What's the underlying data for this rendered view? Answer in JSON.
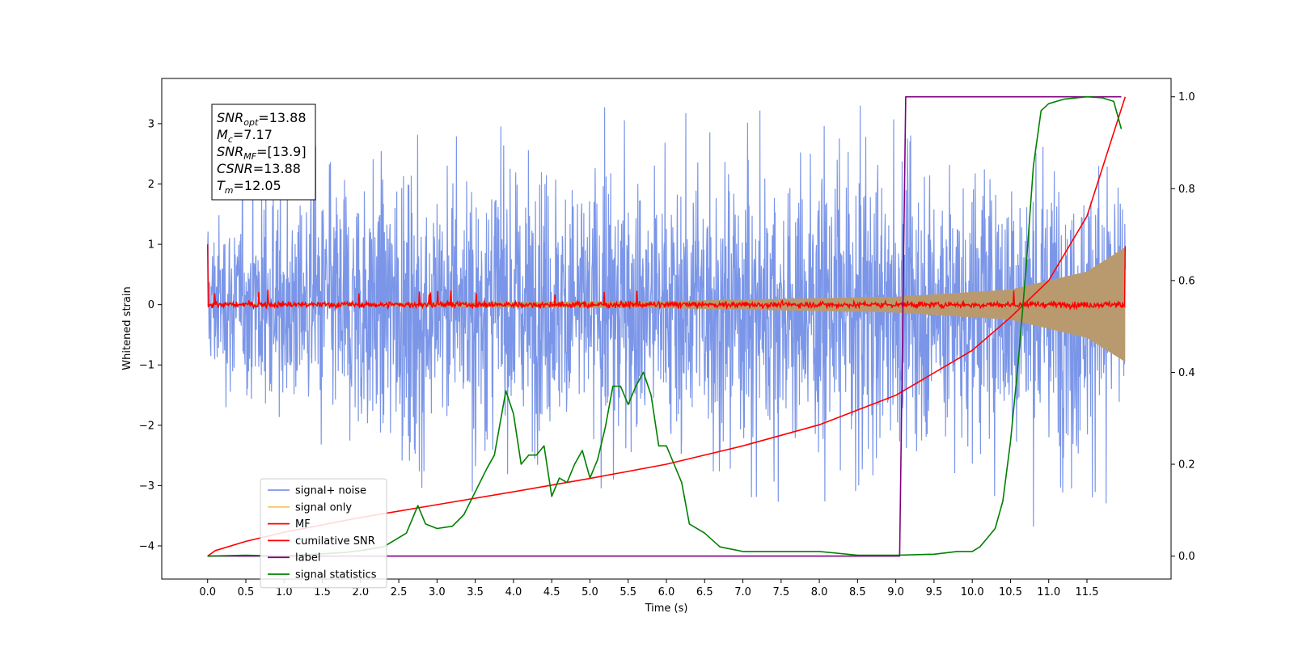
{
  "chart_data": {
    "type": "line",
    "xlabel": "Time (s)",
    "ylabel": "Whitened strain",
    "ylabel_right": "",
    "xlim": [
      -0.6,
      12.6
    ],
    "ylim": [
      -4.55,
      3.75
    ],
    "ylim_right": [
      -0.05,
      1.04
    ],
    "x_ticks": [
      0.0,
      0.5,
      1.0,
      1.5,
      2.0,
      2.5,
      3.0,
      3.5,
      4.0,
      4.5,
      5.0,
      5.5,
      6.0,
      6.5,
      7.0,
      7.5,
      8.0,
      8.5,
      9.0,
      9.5,
      10.0,
      10.5,
      11.0,
      11.5
    ],
    "x_tick_labels": [
      "0.0",
      "0.5",
      "1.0",
      "1.5",
      "2.0",
      "2.5",
      "3.0",
      "3.5",
      "4.0",
      "4.5",
      "5.0",
      "5.5",
      "6.0",
      "6.5",
      "7.0",
      "7.5",
      "8.0",
      "8.5",
      "9.0",
      "9.5",
      "10.0",
      "10.5",
      "11.0",
      "11.5"
    ],
    "y_ticks": [
      -4,
      -3,
      -2,
      -1,
      0,
      1,
      2,
      3
    ],
    "y_tick_labels": [
      "−4",
      "−3",
      "−2",
      "−1",
      "0",
      "1",
      "2",
      "3"
    ],
    "y_ticks_right": [
      0.0,
      0.2,
      0.4,
      0.6,
      0.8,
      1.0
    ],
    "y_tick_labels_right": [
      "0.0",
      "0.2",
      "0.4",
      "0.6",
      "0.8",
      "1.0"
    ],
    "grid": false,
    "legend_placement": "lower-left",
    "annotation": [
      {
        "sym": "SNR",
        "sub": "opt",
        "rest": "=13.88"
      },
      {
        "sym": "M",
        "sub": "c",
        "rest": "=7.17"
      },
      {
        "sym": "SNR",
        "sub": "MF",
        "rest": "=[13.9]"
      },
      {
        "sym": "CSNR",
        "sub": "",
        "rest": "=13.88"
      },
      {
        "sym": "T",
        "sub": "m",
        "rest": "=12.05"
      }
    ],
    "series": [
      {
        "name": "signal+ noise",
        "color": "#7b96e8",
        "axis": "left",
        "kind": "noise",
        "x_range": [
          0.0,
          12.0
        ],
        "envelope_upper": [
          [
            0.0,
            1.5
          ],
          [
            2.0,
            2.4
          ],
          [
            6.0,
            2.5
          ],
          [
            12.0,
            2.6
          ]
        ],
        "envelope_lower": [
          [
            0.0,
            -1.4
          ],
          [
            2.0,
            -2.4
          ],
          [
            6.0,
            -2.5
          ],
          [
            12.0,
            -2.7
          ]
        ],
        "extreme_max": 3.3,
        "extreme_min": -4.2
      },
      {
        "name": "signal only",
        "color": "#f5c86a",
        "axis": "left",
        "kind": "chirp",
        "x_range": [
          0.0,
          12.0
        ],
        "amplitude": [
          [
            0.0,
            0.01
          ],
          [
            6.0,
            0.06
          ],
          [
            9.0,
            0.13
          ],
          [
            10.5,
            0.25
          ],
          [
            11.5,
            0.55
          ],
          [
            12.0,
            0.95
          ]
        ]
      },
      {
        "name": "MF",
        "color": "#ff0000",
        "axis": "left",
        "kind": "noise",
        "x_range": [
          0.0,
          12.0
        ],
        "start_value": 1.0,
        "end_value": 0.97,
        "typical_spread": 0.08,
        "extreme_max": 0.25,
        "extreme_min": -0.09
      },
      {
        "name": "cumilative SNR",
        "color": "#ff0000",
        "axis": "right",
        "x": [
          0.0,
          0.1,
          0.5,
          1.0,
          2.0,
          3.0,
          4.0,
          5.0,
          6.0,
          7.0,
          8.0,
          9.0,
          10.0,
          10.5,
          11.0,
          11.5,
          12.0
        ],
        "values": [
          0.0,
          0.012,
          0.032,
          0.052,
          0.084,
          0.112,
          0.14,
          0.169,
          0.2,
          0.24,
          0.286,
          0.35,
          0.448,
          0.52,
          0.6,
          0.74,
          1.0
        ]
      },
      {
        "name": "label",
        "color": "#800080",
        "axis": "right",
        "x": [
          0.0,
          9.05,
          9.13,
          11.95
        ],
        "values": [
          0.0,
          0.0,
          1.0,
          1.0
        ]
      },
      {
        "name": "signal statistics",
        "color": "#008000",
        "axis": "right",
        "x": [
          0.0,
          0.5,
          1.0,
          1.5,
          1.8,
          2.0,
          2.3,
          2.6,
          2.75,
          2.85,
          3.0,
          3.2,
          3.35,
          3.5,
          3.65,
          3.75,
          3.9,
          4.0,
          4.1,
          4.2,
          4.3,
          4.4,
          4.5,
          4.6,
          4.7,
          4.8,
          4.9,
          5.0,
          5.1,
          5.2,
          5.3,
          5.4,
          5.5,
          5.6,
          5.7,
          5.8,
          5.9,
          6.0,
          6.1,
          6.2,
          6.3,
          6.5,
          6.7,
          7.0,
          7.5,
          8.0,
          8.5,
          9.0,
          9.5,
          9.8,
          10.0,
          10.1,
          10.2,
          10.3,
          10.4,
          10.5,
          10.6,
          10.7,
          10.8,
          10.9,
          11.0,
          11.2,
          11.5,
          11.7,
          11.85,
          11.95
        ],
        "values": [
          0.0,
          0.002,
          0.0,
          0.005,
          0.008,
          0.012,
          0.02,
          0.05,
          0.11,
          0.07,
          0.06,
          0.065,
          0.09,
          0.14,
          0.19,
          0.22,
          0.36,
          0.31,
          0.2,
          0.22,
          0.22,
          0.24,
          0.13,
          0.17,
          0.16,
          0.2,
          0.23,
          0.17,
          0.21,
          0.28,
          0.37,
          0.37,
          0.33,
          0.37,
          0.4,
          0.35,
          0.24,
          0.24,
          0.2,
          0.16,
          0.07,
          0.05,
          0.02,
          0.01,
          0.01,
          0.01,
          0.002,
          0.002,
          0.004,
          0.01,
          0.01,
          0.02,
          0.04,
          0.06,
          0.12,
          0.25,
          0.42,
          0.62,
          0.85,
          0.97,
          0.985,
          0.995,
          1.0,
          0.998,
          0.99,
          0.93
        ]
      }
    ]
  }
}
